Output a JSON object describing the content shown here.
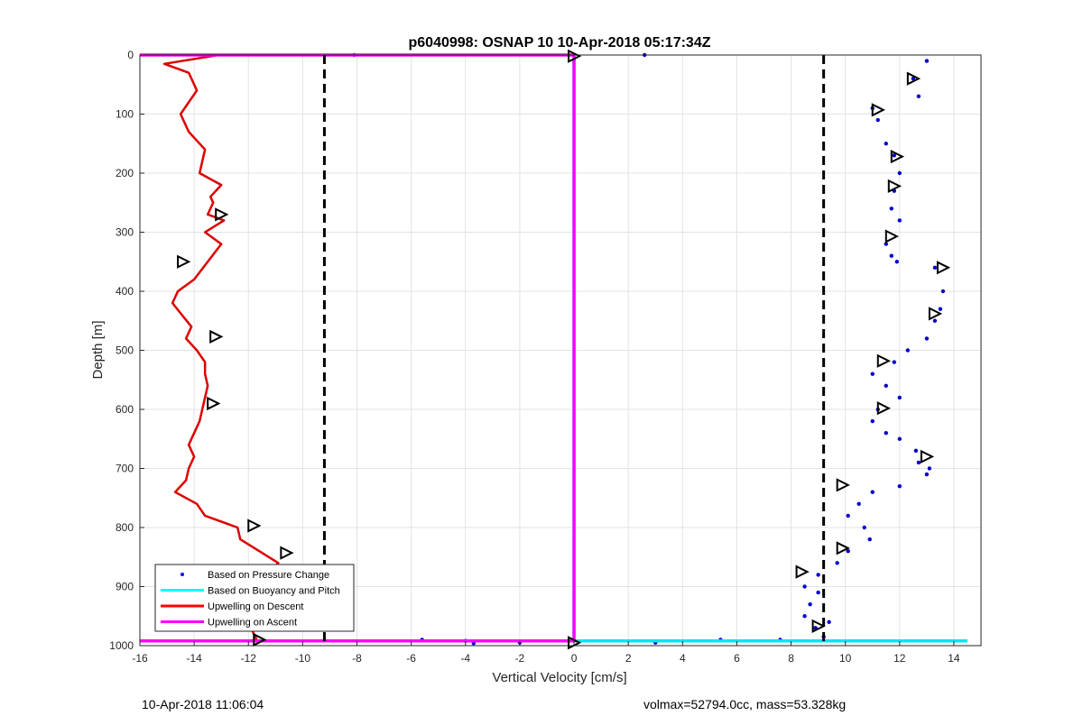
{
  "chart_data": {
    "type": "scatter",
    "title": "p6040998: OSNAP 10 10-Apr-2018 05:17:34Z",
    "xlabel": "Vertical Velocity [cm/s]",
    "ylabel": "Depth [m]",
    "xlim": [
      -16,
      15
    ],
    "ylim": [
      0,
      1000
    ],
    "y_reversed": true,
    "x_ticks": [
      -16,
      -14,
      -12,
      -10,
      -8,
      -6,
      -4,
      -2,
      0,
      2,
      4,
      6,
      8,
      10,
      12,
      14
    ],
    "y_ticks": [
      0,
      100,
      200,
      300,
      400,
      500,
      600,
      700,
      800,
      900,
      1000
    ],
    "grid": true,
    "legend_location": "bottom-left",
    "legend": [
      {
        "label": "Based on Pressure Change",
        "color": "#0000ff",
        "style": "dot"
      },
      {
        "label": "Based on Buoyancy and Pitch",
        "color": "#00ffff",
        "style": "line"
      },
      {
        "label": "Upwelling on Descent",
        "color": "#ff0000",
        "style": "line"
      },
      {
        "label": "Upwelling on Ascent",
        "color": "#ff00ff",
        "style": "line"
      }
    ],
    "series": [
      {
        "name": "Upwelling on Descent",
        "color": "#dd0000",
        "style": "line",
        "x": [
          -13.1,
          -15.1,
          -14.2,
          -13.9,
          -14.5,
          -14.2,
          -13.6,
          -13.8,
          -13.0,
          -13.4,
          -13.3,
          -13.5,
          -12.9,
          -13.6,
          -13.0,
          -13.5,
          -14.0,
          -14.6,
          -14.8,
          -14.1,
          -14.3,
          -13.9,
          -13.6,
          -13.6,
          -13.5,
          -13.7,
          -13.8,
          -14.0,
          -14.2,
          -14.0,
          -14.2,
          -14.3,
          -14.7,
          -13.9,
          -13.6,
          -12.4,
          -12.3,
          -11.6,
          -10.9,
          -11.3,
          -11.5,
          -11.1,
          -11.8,
          -11.9,
          -11.7
        ],
        "y": [
          0,
          15,
          30,
          60,
          100,
          130,
          160,
          200,
          220,
          240,
          250,
          270,
          280,
          300,
          320,
          350,
          380,
          400,
          420,
          460,
          480,
          500,
          520,
          540,
          560,
          600,
          620,
          640,
          660,
          680,
          700,
          720,
          740,
          760,
          780,
          800,
          820,
          840,
          860,
          880,
          900,
          930,
          950,
          970,
          990
        ]
      },
      {
        "name": "Based on Pressure Change",
        "color": "#0000cc",
        "style": "dot",
        "x": [
          13.0,
          12.5,
          12.7,
          11.0,
          11.2,
          11.5,
          11.8,
          12.0,
          11.8,
          11.7,
          12.0,
          11.5,
          11.7,
          11.9,
          13.3,
          13.6,
          13.5,
          13.3,
          13.0,
          12.3,
          11.8,
          11.0,
          11.5,
          12.0,
          11.2,
          11.0,
          11.5,
          12.0,
          12.6,
          12.7,
          13.1,
          13.0,
          12.0,
          11.0,
          10.5,
          10.1,
          10.7,
          10.9,
          10.1,
          9.7,
          9.0,
          8.5,
          9.0,
          8.7,
          8.5,
          9.4,
          8.9,
          9.2,
          2.6,
          -8.1,
          7.6,
          5.4,
          3.0,
          -4.0,
          -3.7,
          -5.6,
          -2.0
        ],
        "y": [
          10,
          40,
          70,
          90,
          110,
          150,
          170,
          200,
          230,
          260,
          280,
          320,
          340,
          350,
          360,
          400,
          430,
          450,
          480,
          500,
          520,
          540,
          560,
          580,
          600,
          620,
          640,
          650,
          670,
          690,
          700,
          710,
          730,
          740,
          760,
          780,
          800,
          820,
          840,
          860,
          880,
          900,
          910,
          930,
          950,
          960,
          970,
          985,
          0,
          0,
          990,
          990,
          995,
          992,
          996,
          990,
          995
        ]
      },
      {
        "name": "Based on Buoyancy and Pitch",
        "color": "#00e5ee",
        "style": "line",
        "x": [
          0,
          0,
          0,
          14.5
        ],
        "y": [
          0,
          992,
          992,
          992
        ]
      },
      {
        "name": "Upwelling on Ascent",
        "color": "#ff00ff",
        "style": "line",
        "x": [
          -16,
          0,
          0,
          -16
        ],
        "y": [
          0,
          0,
          992,
          992
        ]
      },
      {
        "name": "Black dashed limits",
        "color": "#000000",
        "style": "dashed",
        "x": [
          -9.2,
          9.2
        ],
        "y": [
          0,
          1000
        ]
      }
    ],
    "triangle_markers": [
      {
        "x": -13.0,
        "y": 270
      },
      {
        "x": -14.4,
        "y": 350
      },
      {
        "x": -13.2,
        "y": 477
      },
      {
        "x": -13.3,
        "y": 590
      },
      {
        "x": -11.8,
        "y": 797
      },
      {
        "x": -10.6,
        "y": 843
      },
      {
        "x": -10.7,
        "y": 880
      },
      {
        "x": -12.1,
        "y": 960
      },
      {
        "x": -11.6,
        "y": 990
      },
      {
        "x": 12.5,
        "y": 40
      },
      {
        "x": 11.2,
        "y": 93
      },
      {
        "x": 11.9,
        "y": 172
      },
      {
        "x": 11.8,
        "y": 222
      },
      {
        "x": 11.7,
        "y": 307
      },
      {
        "x": 13.6,
        "y": 360
      },
      {
        "x": 13.3,
        "y": 438
      },
      {
        "x": 11.4,
        "y": 518
      },
      {
        "x": 11.4,
        "y": 598
      },
      {
        "x": 13.0,
        "y": 680
      },
      {
        "x": 9.9,
        "y": 728
      },
      {
        "x": 9.9,
        "y": 835
      },
      {
        "x": 8.4,
        "y": 875
      },
      {
        "x": 9.0,
        "y": 967
      },
      {
        "x": 0.0,
        "y": 2
      },
      {
        "x": 0.0,
        "y": 995
      }
    ]
  },
  "footer": {
    "left_text": "10-Apr-2018 11:06:04",
    "right_text": "volmax=52794.0cc, mass=53.328kg"
  }
}
